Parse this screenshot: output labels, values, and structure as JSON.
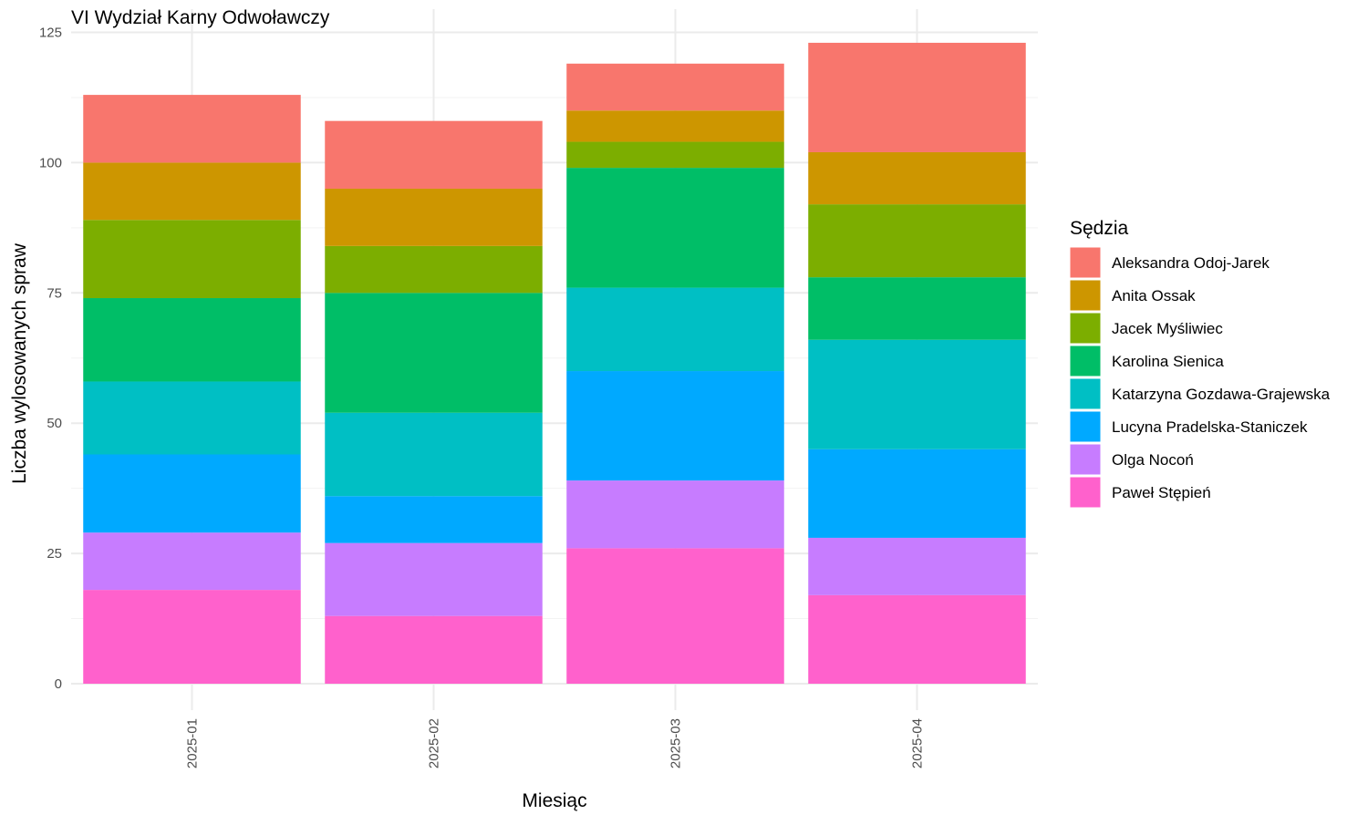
{
  "chart_data": {
    "type": "bar",
    "stacked": true,
    "title": "VI Wydział Karny Odwoławczy",
    "xlabel": "Miesiąc",
    "ylabel": "Liczba wylosowanych spraw",
    "ylim": [
      0,
      128
    ],
    "yticks": [
      0,
      25,
      50,
      75,
      100,
      125
    ],
    "grid": true,
    "legend_title": "Sędzia",
    "legend_position": "right",
    "categories": [
      "2025-01",
      "2025-02",
      "2025-03",
      "2025-04"
    ],
    "series": [
      {
        "name": "Aleksandra Odoj-Jarek",
        "color": "#F8766D",
        "values": [
          13,
          13,
          9,
          21
        ]
      },
      {
        "name": "Anita Ossak",
        "color": "#CD9600",
        "values": [
          11,
          11,
          6,
          10
        ]
      },
      {
        "name": "Jacek Myśliwiec",
        "color": "#7CAE00",
        "values": [
          15,
          9,
          5,
          14
        ]
      },
      {
        "name": "Karolina Sienica",
        "color": "#00BE67",
        "values": [
          16,
          23,
          23,
          12
        ]
      },
      {
        "name": "Katarzyna Gozdawa-Grajewska",
        "color": "#00BFC4",
        "values": [
          14,
          16,
          16,
          21
        ]
      },
      {
        "name": "Lucyna Pradelska-Staniczek",
        "color": "#00A9FF",
        "values": [
          15,
          9,
          21,
          17
        ]
      },
      {
        "name": "Olga Nocoń",
        "color": "#C77CFF",
        "values": [
          11,
          14,
          13,
          11
        ]
      },
      {
        "name": "Paweł Stępień",
        "color": "#FF61CC",
        "values": [
          18,
          13,
          26,
          17
        ]
      }
    ]
  }
}
